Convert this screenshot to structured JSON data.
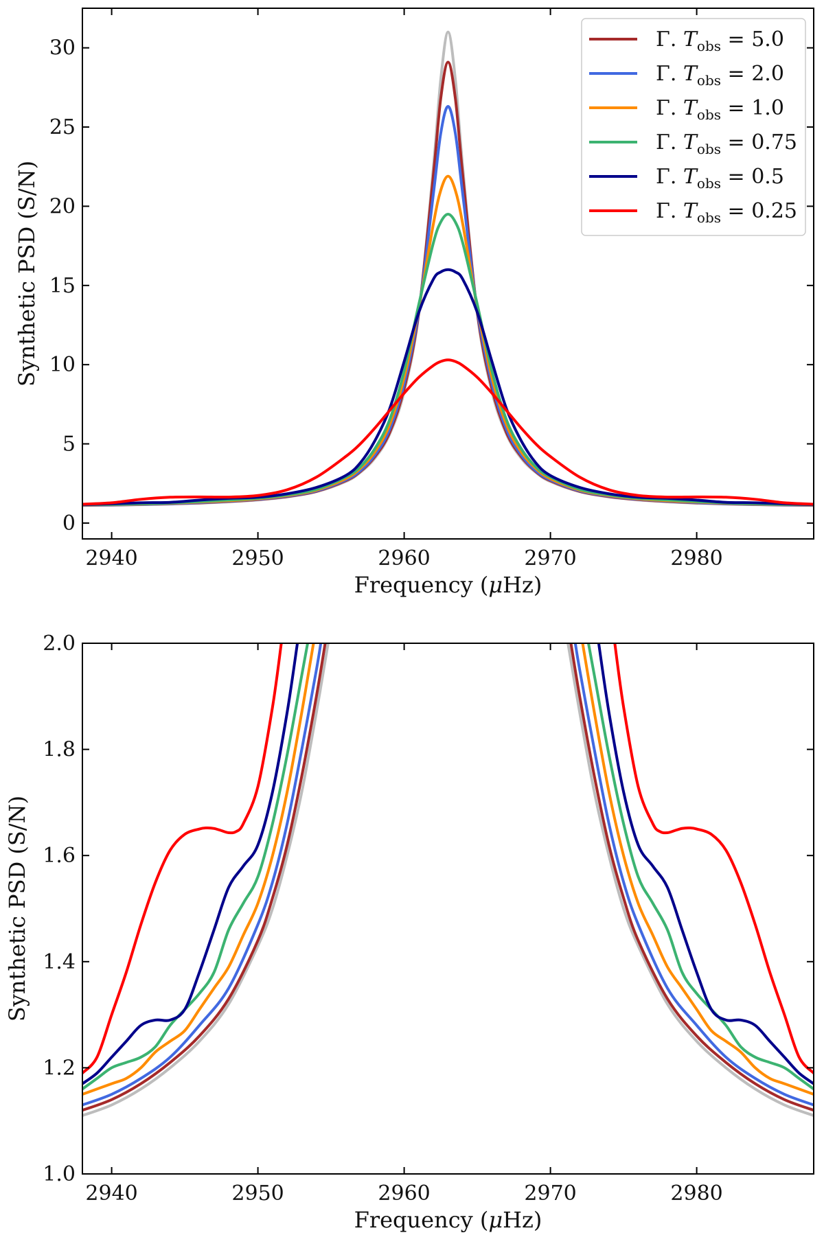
{
  "chart_data": [
    {
      "type": "line",
      "xlabel_prefix": "Frequency (",
      "xlabel_mu": "μ",
      "xlabel_suffix": "Hz)",
      "ylabel": "Synthetic PSD (S/N)",
      "xlim": [
        2938,
        2988
      ],
      "ylim": [
        -1,
        32.5
      ],
      "xticks": [
        2940,
        2950,
        2960,
        2970,
        2980
      ],
      "yticks": [
        0,
        5,
        10,
        15,
        20,
        25,
        30
      ],
      "ytick_format": "int",
      "legend_position": "top-right",
      "grid": false,
      "center": 2963,
      "x": [
        2938,
        2940,
        2942,
        2944,
        2946,
        2948,
        2950,
        2952,
        2954,
        2956,
        2957,
        2958,
        2959,
        2960,
        2961,
        2962,
        2962.5,
        2963,
        2963.5,
        2964,
        2965,
        2966,
        2967,
        2968,
        2969,
        2970,
        2972,
        2974,
        2976,
        2978,
        2980,
        2982,
        2984,
        2986,
        2988
      ],
      "series": [
        {
          "key": "reference",
          "color": "#bdbdbd",
          "values": [
            1.11,
            1.13,
            1.16,
            1.2,
            1.26,
            1.34,
            1.46,
            1.65,
            1.98,
            2.62,
            3.2,
            4.1,
            5.6,
            8.3,
            13.2,
            22.5,
            28.0,
            31.0,
            28.0,
            22.5,
            13.2,
            8.3,
            5.6,
            4.1,
            3.2,
            2.62,
            1.98,
            1.65,
            1.46,
            1.34,
            1.26,
            1.2,
            1.16,
            1.13,
            1.11
          ]
        },
        {
          "key": "g5",
          "label_main": "Γ. T",
          "label_sub": "obs",
          "label_value": " = 5.0",
          "color": "#a52a2a",
          "values": [
            1.12,
            1.14,
            1.17,
            1.21,
            1.27,
            1.36,
            1.48,
            1.67,
            2.0,
            2.67,
            3.25,
            4.2,
            5.7,
            8.5,
            13.3,
            22.0,
            26.8,
            29.1,
            26.8,
            22.0,
            13.3,
            8.5,
            5.7,
            4.2,
            3.25,
            2.67,
            2.0,
            1.67,
            1.48,
            1.36,
            1.27,
            1.21,
            1.17,
            1.14,
            1.12
          ]
        },
        {
          "key": "g2",
          "label_main": "Γ. T",
          "label_sub": "obs",
          "label_value": " = 2.0",
          "color": "#4169e1",
          "values": [
            1.13,
            1.15,
            1.18,
            1.22,
            1.29,
            1.38,
            1.5,
            1.7,
            2.03,
            2.72,
            3.3,
            4.3,
            5.9,
            8.8,
            13.4,
            20.8,
            24.6,
            26.3,
            24.6,
            20.8,
            13.4,
            8.8,
            5.9,
            4.3,
            3.3,
            2.72,
            2.03,
            1.7,
            1.5,
            1.38,
            1.29,
            1.22,
            1.18,
            1.15,
            1.13
          ]
        },
        {
          "key": "g1",
          "label_main": "Γ. T",
          "label_sub": "obs",
          "label_value": " = 1.0",
          "color": "#ff8c00",
          "values": [
            1.15,
            1.17,
            1.2,
            1.25,
            1.33,
            1.41,
            1.53,
            1.74,
            2.08,
            2.8,
            3.45,
            4.5,
            6.2,
            9.2,
            13.6,
            18.9,
            21.0,
            21.9,
            21.0,
            18.9,
            13.6,
            9.2,
            6.2,
            4.5,
            3.45,
            2.8,
            2.08,
            1.74,
            1.53,
            1.41,
            1.33,
            1.25,
            1.2,
            1.17,
            1.15
          ]
        },
        {
          "key": "g075",
          "label_main": "Γ. T",
          "label_sub": "obs",
          "label_value": " = 0.75",
          "color": "#3cb371",
          "values": [
            1.16,
            1.18,
            1.22,
            1.27,
            1.36,
            1.46,
            1.57,
            1.78,
            2.13,
            2.9,
            3.55,
            4.7,
            6.5,
            9.6,
            13.8,
            17.7,
            19.0,
            19.5,
            19.0,
            17.7,
            13.8,
            9.6,
            6.5,
            4.7,
            3.55,
            2.9,
            2.13,
            1.78,
            1.57,
            1.46,
            1.36,
            1.27,
            1.22,
            1.18,
            1.16
          ]
        },
        {
          "key": "g05",
          "label_main": "Γ. T",
          "label_sub": "obs",
          "label_value": " = 0.5",
          "color": "#00008b",
          "values": [
            1.17,
            1.22,
            1.28,
            1.31,
            1.45,
            1.56,
            1.63,
            1.85,
            2.25,
            3.0,
            3.8,
            5.2,
            7.2,
            10.2,
            13.3,
            15.4,
            15.85,
            16.0,
            15.85,
            15.4,
            13.3,
            10.2,
            7.2,
            5.2,
            3.8,
            3.0,
            2.25,
            1.85,
            1.63,
            1.56,
            1.45,
            1.31,
            1.28,
            1.22,
            1.17
          ]
        },
        {
          "key": "g025",
          "label_main": "Γ. T",
          "label_sub": "obs",
          "label_value": " = 0.25",
          "color": "#ff0000",
          "values": [
            1.19,
            1.28,
            1.5,
            1.63,
            1.65,
            1.64,
            1.74,
            2.1,
            2.9,
            4.2,
            5.0,
            6.0,
            7.1,
            8.2,
            9.2,
            9.95,
            10.2,
            10.3,
            10.2,
            9.95,
            9.2,
            8.2,
            7.1,
            6.0,
            5.0,
            4.2,
            2.9,
            2.1,
            1.74,
            1.64,
            1.65,
            1.63,
            1.5,
            1.28,
            1.19
          ]
        }
      ]
    },
    {
      "type": "line",
      "xlabel_prefix": "Frequency (",
      "xlabel_mu": "μ",
      "xlabel_suffix": "Hz)",
      "ylabel": "Synthetic PSD (S/N)",
      "xlim": [
        2938,
        2988
      ],
      "ylim": [
        1.0,
        2.0
      ],
      "xticks": [
        2940,
        2950,
        2960,
        2970,
        2980
      ],
      "yticks": [
        1.0,
        1.2,
        1.4,
        1.6,
        1.8,
        2.0
      ],
      "ytick_format": "1dec",
      "grid": false,
      "center": 2963,
      "series": [
        {
          "key": "reference",
          "color": "#bdbdbd",
          "x": [
            2938,
            2940,
            2942,
            2944,
            2946,
            2948,
            2950,
            2951,
            2952,
            2953,
            2954,
            2954.8
          ],
          "values": [
            1.11,
            1.13,
            1.16,
            1.2,
            1.25,
            1.32,
            1.43,
            1.5,
            1.6,
            1.72,
            1.87,
            2.0
          ]
        },
        {
          "key": "g5",
          "color": "#a52a2a",
          "x": [
            2938,
            2940,
            2942,
            2944,
            2946,
            2948,
            2950,
            2951,
            2952,
            2953,
            2954,
            2954.6
          ],
          "values": [
            1.12,
            1.14,
            1.17,
            1.21,
            1.26,
            1.33,
            1.44,
            1.52,
            1.62,
            1.75,
            1.9,
            2.0
          ]
        },
        {
          "key": "g2",
          "color": "#4169e1",
          "x": [
            2938,
            2940,
            2942,
            2944,
            2946,
            2948,
            2950,
            2951,
            2952,
            2953,
            2954,
            2954.3
          ],
          "values": [
            1.13,
            1.15,
            1.18,
            1.22,
            1.28,
            1.35,
            1.47,
            1.55,
            1.66,
            1.8,
            1.95,
            2.0
          ]
        },
        {
          "key": "g1",
          "color": "#ff8c00",
          "x": [
            2938,
            2940,
            2941,
            2942,
            2943,
            2944,
            2945,
            2946,
            2947,
            2948,
            2949,
            2950,
            2951,
            2952,
            2953,
            2953.8
          ],
          "values": [
            1.15,
            1.17,
            1.18,
            1.2,
            1.23,
            1.25,
            1.27,
            1.31,
            1.35,
            1.39,
            1.45,
            1.51,
            1.6,
            1.72,
            1.87,
            2.0
          ]
        },
        {
          "key": "g075",
          "color": "#3cb371",
          "x": [
            2938,
            2939,
            2940,
            2941,
            2942,
            2943,
            2944,
            2945,
            2946,
            2947,
            2948,
            2949,
            2950,
            2951,
            2952,
            2953,
            2953.4
          ],
          "values": [
            1.16,
            1.18,
            1.2,
            1.21,
            1.22,
            1.24,
            1.28,
            1.31,
            1.34,
            1.38,
            1.46,
            1.51,
            1.56,
            1.66,
            1.79,
            1.94,
            2.0
          ]
        },
        {
          "key": "g05",
          "color": "#00008b",
          "x": [
            2938,
            2939,
            2940,
            2941,
            2942,
            2943,
            2944,
            2945,
            2946,
            2947,
            2948,
            2949,
            2950,
            2951,
            2952,
            2952.7
          ],
          "values": [
            1.17,
            1.19,
            1.22,
            1.25,
            1.28,
            1.29,
            1.29,
            1.31,
            1.38,
            1.46,
            1.54,
            1.58,
            1.62,
            1.72,
            1.87,
            2.0
          ]
        },
        {
          "key": "g025",
          "color": "#ff0000",
          "x": [
            2938,
            2939,
            2940,
            2941,
            2942,
            2943,
            2944,
            2945,
            2946,
            2946.5,
            2947,
            2947.5,
            2948,
            2948.5,
            2949,
            2950,
            2951,
            2951.6
          ],
          "values": [
            1.19,
            1.22,
            1.3,
            1.38,
            1.47,
            1.55,
            1.61,
            1.64,
            1.65,
            1.652,
            1.651,
            1.647,
            1.643,
            1.645,
            1.66,
            1.73,
            1.88,
            2.0
          ]
        }
      ]
    }
  ]
}
